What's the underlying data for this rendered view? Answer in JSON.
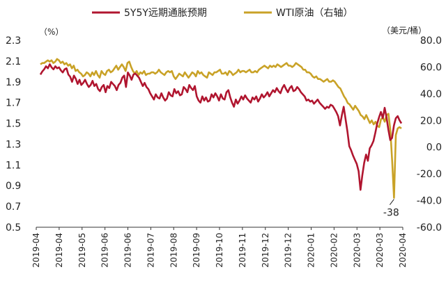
{
  "chart_data": {
    "type": "line",
    "legend": [
      "5Y5Y远期通胀预期",
      "WTI原油（右轴）"
    ],
    "y_left": {
      "unit": "（%）",
      "min": 0.5,
      "max": 2.3,
      "ticks": [
        "2.3",
        "2.1",
        "1.9",
        "1.7",
        "1.5",
        "1.3",
        "1.1",
        "0.9",
        "0.7",
        "0.5"
      ]
    },
    "y_right": {
      "unit": "（美元/桶）",
      "min": -60,
      "max": 80,
      "ticks": [
        "80.0",
        "60.0",
        "40.0",
        "20.0",
        "0.0",
        "-20.0",
        "-40.0",
        "-60.0"
      ]
    },
    "x_ticks": [
      "2019-04",
      "2019-04",
      "2019-05",
      "2019-06",
      "2019-06",
      "2019-07",
      "2019-08",
      "2019-09",
      "2019-10",
      "2019-11",
      "2019-12",
      "2019-12",
      "2020-01",
      "2020-02",
      "2020-03",
      "2020-03",
      "2020-04"
    ],
    "annotation": "-38",
    "series": [
      {
        "name": "5Y5Y远期通胀预期",
        "color": "#b0152f",
        "axis": "left",
        "values": [
          1.97,
          2.0,
          2.02,
          2.05,
          2.03,
          2.07,
          2.04,
          2.02,
          2.05,
          2.03,
          2.04,
          2.01,
          1.99,
          2.02,
          2.03,
          1.97,
          1.95,
          1.9,
          1.96,
          1.93,
          1.88,
          1.92,
          1.87,
          1.89,
          1.92,
          1.88,
          1.85,
          1.87,
          1.91,
          1.86,
          1.88,
          1.83,
          1.81,
          1.85,
          1.87,
          1.8,
          1.86,
          1.84,
          1.9,
          1.88,
          1.86,
          1.82,
          1.87,
          1.89,
          1.94,
          1.96,
          1.85,
          1.99,
          1.96,
          1.92,
          1.97,
          1.98,
          1.96,
          1.94,
          1.9,
          1.86,
          1.89,
          1.85,
          1.83,
          1.79,
          1.76,
          1.73,
          1.78,
          1.75,
          1.74,
          1.79,
          1.75,
          1.72,
          1.74,
          1.8,
          1.77,
          1.76,
          1.83,
          1.79,
          1.81,
          1.77,
          1.78,
          1.85,
          1.83,
          1.8,
          1.87,
          1.84,
          1.82,
          1.86,
          1.76,
          1.72,
          1.7,
          1.76,
          1.72,
          1.75,
          1.71,
          1.72,
          1.78,
          1.75,
          1.79,
          1.76,
          1.72,
          1.78,
          1.74,
          1.73,
          1.8,
          1.82,
          1.75,
          1.7,
          1.66,
          1.73,
          1.69,
          1.72,
          1.76,
          1.73,
          1.77,
          1.74,
          1.72,
          1.7,
          1.75,
          1.73,
          1.76,
          1.71,
          1.74,
          1.78,
          1.75,
          1.77,
          1.8,
          1.76,
          1.79,
          1.82,
          1.8,
          1.84,
          1.81,
          1.79,
          1.84,
          1.87,
          1.83,
          1.8,
          1.84,
          1.86,
          1.81,
          1.82,
          1.85,
          1.83,
          1.8,
          1.78,
          1.76,
          1.72,
          1.73,
          1.71,
          1.72,
          1.69,
          1.71,
          1.73,
          1.7,
          1.68,
          1.66,
          1.64,
          1.66,
          1.65,
          1.68,
          1.67,
          1.64,
          1.61,
          1.57,
          1.48,
          1.58,
          1.66,
          1.54,
          1.42,
          1.28,
          1.24,
          1.19,
          1.15,
          1.11,
          1.04,
          0.86,
          1.0,
          1.12,
          1.2,
          1.14,
          1.26,
          1.29,
          1.33,
          1.41,
          1.5,
          1.56,
          1.61,
          1.55,
          1.65,
          1.56,
          1.44,
          1.34,
          1.36,
          1.48,
          1.55,
          1.57,
          1.53,
          1.5
        ]
      },
      {
        "name": "WTI原油（右轴）",
        "color": "#c9a227",
        "axis": "right",
        "values": [
          62,
          63,
          63,
          64,
          65,
          64,
          65,
          63,
          64,
          66,
          65,
          63,
          64,
          62,
          63,
          61,
          62,
          59,
          61,
          57,
          58,
          56,
          55,
          53,
          54,
          56,
          55,
          53,
          56,
          54,
          57,
          54,
          52,
          57,
          55,
          54,
          57,
          58,
          56,
          57,
          59,
          61,
          58,
          60,
          62,
          60,
          57,
          63,
          64,
          60,
          57,
          55,
          57,
          54,
          56,
          55,
          57,
          54,
          55,
          55,
          56,
          56,
          55,
          56,
          58,
          56,
          55,
          54,
          56,
          57,
          56,
          57,
          53,
          51,
          53,
          55,
          54,
          53,
          56,
          54,
          52,
          54,
          56,
          55,
          53,
          57,
          55,
          56,
          54,
          53,
          52,
          56,
          55,
          54,
          56,
          56,
          57,
          58,
          55,
          55,
          56,
          54,
          57,
          56,
          54,
          55,
          56,
          58,
          56,
          57,
          57,
          56,
          57,
          58,
          56,
          56,
          57,
          56,
          58,
          59,
          60,
          61,
          60,
          59,
          61,
          60,
          61,
          60,
          62,
          61,
          60,
          61,
          62,
          63,
          61,
          61,
          60,
          61,
          63,
          62,
          61,
          60,
          58,
          58,
          56,
          56,
          55,
          53,
          52,
          53,
          51,
          51,
          50,
          49,
          50,
          51,
          49,
          49,
          50,
          49,
          47,
          45,
          44,
          41,
          38,
          36,
          33,
          32,
          30,
          28,
          31,
          29,
          27,
          24,
          23,
          21,
          24,
          21,
          18,
          20,
          17,
          19,
          16,
          15,
          21,
          22,
          19,
          24,
          25,
          13,
          -10,
          -38,
          9,
          14,
          15,
          14
        ]
      }
    ]
  }
}
